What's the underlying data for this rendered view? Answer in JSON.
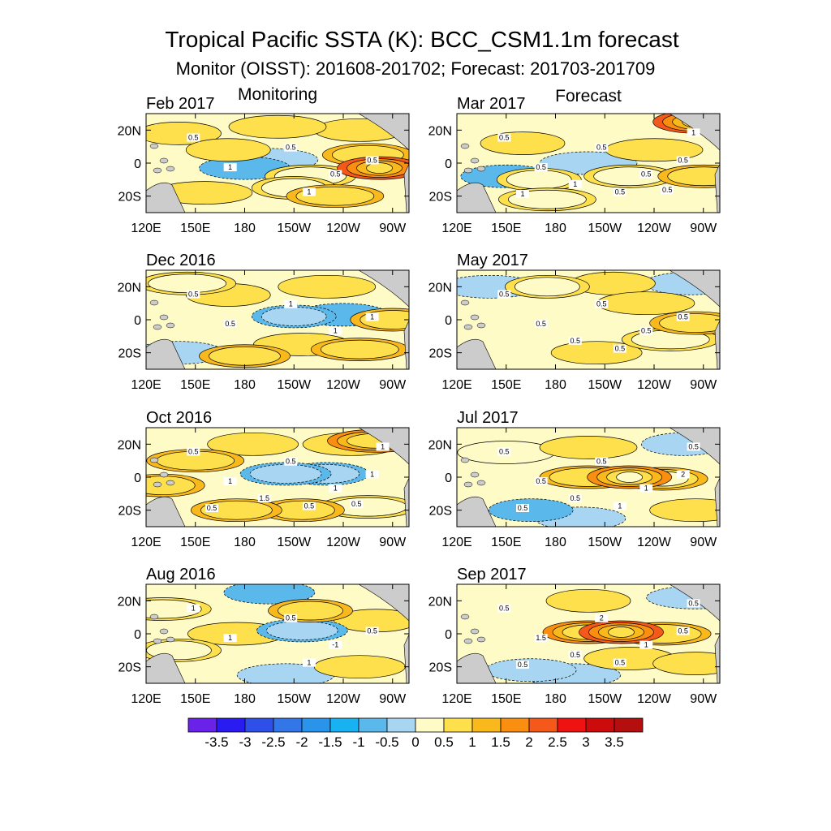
{
  "header": {
    "title": "Tropical Pacific SSTA (K):  BCC_CSM1.1m forecast",
    "subtitle": "Monitor (OISST): 201608-201702; Forecast: 201703-201709"
  },
  "columns": {
    "monitoring": "Monitoring",
    "forecast": "Forecast"
  },
  "chart_data": {
    "type": "heatmap",
    "variable": "Sea surface temperature anomaly (K)",
    "region": {
      "lon_range": [
        "120E",
        "80W"
      ],
      "lat_range": [
        "30S",
        "30N"
      ]
    },
    "x_ticks": [
      "120E",
      "150E",
      "180",
      "150W",
      "120W",
      "90W"
    ],
    "y_ticks": [
      "20N",
      "0",
      "20S"
    ],
    "colorbar": {
      "levels": [
        "-3.5",
        "-3",
        "-2.5",
        "-2",
        "-1.5",
        "-1",
        "-0.5",
        "0",
        "0.5",
        "1",
        "1.5",
        "2",
        "2.5",
        "3",
        "3.5"
      ],
      "colors": [
        "#6a22e8",
        "#2a1cf0",
        "#2e4fe8",
        "#3276e8",
        "#2a94ea",
        "#18b2f2",
        "#5ab8ea",
        "#a8d6f2",
        "#fffbc6",
        "#fde04c",
        "#f9b81c",
        "#f98e10",
        "#f4581a",
        "#ee1212",
        "#cc0c0c",
        "#b40e0e"
      ]
    },
    "panels": [
      {
        "id": "feb-2017",
        "label": "Feb 2017",
        "column": "monitoring",
        "contour_labels": [
          "0.5",
          "1",
          "0.5",
          "0.5",
          "0.5",
          "1"
        ],
        "anomalies": [
          {
            "lon": 170,
            "lat": 8,
            "value": 0.7
          },
          {
            "lon": 180,
            "lat": -3,
            "value": -0.6
          },
          {
            "lon": 195,
            "lat": 2,
            "value": -0.4
          },
          {
            "lon": 220,
            "lat": -8,
            "value": 0.8
          },
          {
            "lon": 235,
            "lat": -20,
            "value": 1.0
          },
          {
            "lon": 262,
            "lat": -3,
            "value": 2.4
          },
          {
            "lon": 255,
            "lat": 5,
            "value": 1.1
          },
          {
            "lon": 140,
            "lat": 18,
            "value": 0.6
          },
          {
            "lon": 155,
            "lat": -18,
            "value": 0.6
          },
          {
            "lon": 250,
            "lat": 20,
            "value": 0.6
          },
          {
            "lon": 200,
            "lat": 22,
            "value": 0.7
          },
          {
            "lon": 210,
            "lat": -15,
            "value": 0.9
          }
        ]
      },
      {
        "id": "mar-2017",
        "label": "Mar 2017",
        "column": "forecast",
        "contour_labels": [
          "0.5",
          "0.5",
          "0.5",
          "0.5",
          "0.5",
          "0.5",
          "1",
          "1",
          "1",
          "0.5"
        ],
        "anomalies": [
          {
            "lon": 200,
            "lat": 0,
            "value": -0.5
          },
          {
            "lon": 150,
            "lat": -8,
            "value": -0.6
          },
          {
            "lon": 175,
            "lat": -22,
            "value": 0.9
          },
          {
            "lon": 225,
            "lat": -8,
            "value": 0.8
          },
          {
            "lon": 270,
            "lat": -8,
            "value": 1.2
          },
          {
            "lon": 265,
            "lat": 25,
            "value": 2.0
          },
          {
            "lon": 160,
            "lat": 12,
            "value": 0.6
          },
          {
            "lon": 240,
            "lat": 8,
            "value": 0.6
          },
          {
            "lon": 170,
            "lat": -10,
            "value": 0.8
          }
        ]
      },
      {
        "id": "dec-2016",
        "label": "Dec 2016",
        "column": "monitoring",
        "contour_labels": [
          "0.5",
          "0.5",
          "1",
          "1",
          "1"
        ],
        "anomalies": [
          {
            "lon": 210,
            "lat": 2,
            "value": -0.8
          },
          {
            "lon": 240,
            "lat": 3,
            "value": -0.7
          },
          {
            "lon": 180,
            "lat": -22,
            "value": 1.0
          },
          {
            "lon": 250,
            "lat": -18,
            "value": 1.2
          },
          {
            "lon": 270,
            "lat": 0,
            "value": 1.1
          },
          {
            "lon": 145,
            "lat": 22,
            "value": 0.8
          },
          {
            "lon": 170,
            "lat": 15,
            "value": 0.6
          },
          {
            "lon": 230,
            "lat": 20,
            "value": 0.5
          },
          {
            "lon": 140,
            "lat": -20,
            "value": -0.5
          },
          {
            "lon": 215,
            "lat": -15,
            "value": 0.6
          }
        ]
      },
      {
        "id": "may-2017",
        "label": "May 2017",
        "column": "forecast",
        "contour_labels": [
          "0.5",
          "0.5",
          "0.5",
          "0.5",
          "0.5",
          "0.5",
          "0.5"
        ],
        "anomalies": [
          {
            "lon": 175,
            "lat": 20,
            "value": 0.8
          },
          {
            "lon": 215,
            "lat": 22,
            "value": 0.6
          },
          {
            "lon": 205,
            "lat": -20,
            "value": 0.7
          },
          {
            "lon": 250,
            "lat": -12,
            "value": 0.8
          },
          {
            "lon": 265,
            "lat": -2,
            "value": 1.0
          },
          {
            "lon": 235,
            "lat": 10,
            "value": 0.6
          },
          {
            "lon": 140,
            "lat": 20,
            "value": -0.5
          },
          {
            "lon": 262,
            "lat": 22,
            "value": -0.5
          }
        ]
      },
      {
        "id": "oct-2016",
        "label": "Oct 2016",
        "column": "monitoring",
        "contour_labels": [
          "0.5",
          "1",
          "0.5",
          "1",
          "1",
          "0.5",
          "1.5",
          "1",
          "0.5",
          "0.5"
        ],
        "anomalies": [
          {
            "lon": 205,
            "lat": 2,
            "value": -1.0
          },
          {
            "lon": 230,
            "lat": 2,
            "value": -0.8
          },
          {
            "lon": 175,
            "lat": -20,
            "value": 1.1
          },
          {
            "lon": 215,
            "lat": -20,
            "value": 1.0
          },
          {
            "lon": 255,
            "lat": -18,
            "value": 0.9
          },
          {
            "lon": 150,
            "lat": 10,
            "value": 1.0
          },
          {
            "lon": 260,
            "lat": 22,
            "value": 1.5
          },
          {
            "lon": 130,
            "lat": -5,
            "value": 1.2
          },
          {
            "lon": 245,
            "lat": 20,
            "value": 0.6
          },
          {
            "lon": 185,
            "lat": 20,
            "value": 0.7
          }
        ]
      },
      {
        "id": "jul-2017",
        "label": "Jul 2017",
        "column": "forecast",
        "contour_labels": [
          "0.5",
          "0.5",
          "0.5",
          "1",
          "2",
          "1",
          "0.5",
          "0.5",
          "0.5"
        ],
        "anomalies": [
          {
            "lon": 225,
            "lat": 0,
            "value": 1.8
          },
          {
            "lon": 245,
            "lat": -1,
            "value": 1.3
          },
          {
            "lon": 200,
            "lat": 0,
            "value": 1.0
          },
          {
            "lon": 165,
            "lat": -20,
            "value": -0.7
          },
          {
            "lon": 195,
            "lat": -25,
            "value": -0.5
          },
          {
            "lon": 200,
            "lat": 18,
            "value": 0.6
          },
          {
            "lon": 265,
            "lat": -20,
            "value": 0.6
          },
          {
            "lon": 258,
            "lat": 20,
            "value": -0.5
          },
          {
            "lon": 150,
            "lat": 15,
            "value": 0.2
          }
        ]
      },
      {
        "id": "aug-2016",
        "label": "Aug 2016",
        "column": "monitoring",
        "contour_labels": [
          "1",
          "1",
          "0.5",
          "-1",
          "0.5",
          "1"
        ],
        "anomalies": [
          {
            "lon": 215,
            "lat": 2,
            "value": -1.0
          },
          {
            "lon": 195,
            "lat": 25,
            "value": -0.6
          },
          {
            "lon": 220,
            "lat": 14,
            "value": 1.2
          },
          {
            "lon": 130,
            "lat": 15,
            "value": 0.9
          },
          {
            "lon": 140,
            "lat": -10,
            "value": 0.8
          },
          {
            "lon": 260,
            "lat": 8,
            "value": 0.6
          },
          {
            "lon": 205,
            "lat": -25,
            "value": -0.4
          },
          {
            "lon": 250,
            "lat": -20,
            "value": 0.7
          },
          {
            "lon": 175,
            "lat": 0,
            "value": 0.6
          }
        ]
      },
      {
        "id": "sep-2017",
        "label": "Sep 2017",
        "column": "forecast",
        "contour_labels": [
          "0.5",
          "1.5",
          "2",
          "1",
          "0.5",
          "0.5",
          "0.5",
          "0.5",
          "0.5"
        ],
        "anomalies": [
          {
            "lon": 220,
            "lat": 1,
            "value": 2.1
          },
          {
            "lon": 200,
            "lat": 1,
            "value": 1.6
          },
          {
            "lon": 245,
            "lat": 0,
            "value": 1.1
          },
          {
            "lon": 225,
            "lat": -15,
            "value": 0.6
          },
          {
            "lon": 265,
            "lat": -18,
            "value": 0.6
          },
          {
            "lon": 165,
            "lat": -22,
            "value": -0.5
          },
          {
            "lon": 190,
            "lat": -25,
            "value": -0.4
          },
          {
            "lon": 200,
            "lat": 20,
            "value": 0.5
          },
          {
            "lon": 265,
            "lat": 22,
            "value": -0.5
          }
        ]
      }
    ]
  }
}
